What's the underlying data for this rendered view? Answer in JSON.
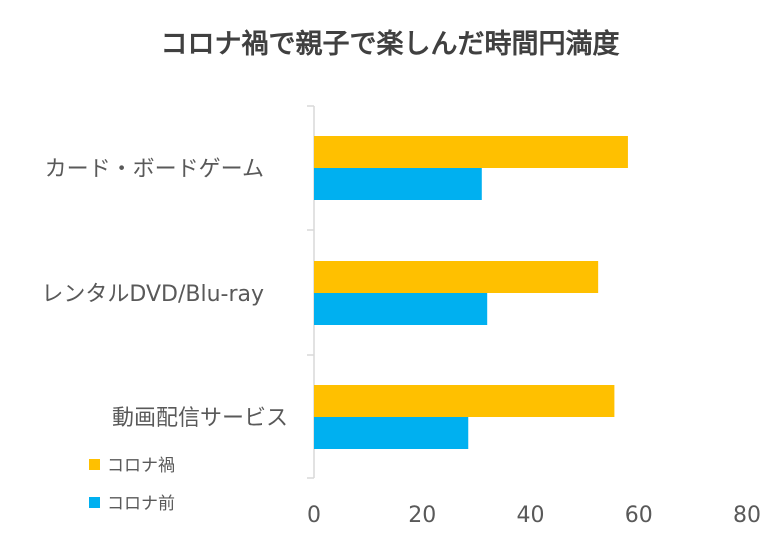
{
  "chart_data": {
    "type": "bar",
    "orientation": "horizontal",
    "title": "コロナ禍で親子で楽しんだ時間円満度",
    "categories": [
      "カード・ボードゲーム",
      "レンタルDVD/Blu-ray",
      "動画配信サービス"
    ],
    "series": [
      {
        "name": "コロナ禍",
        "color": "#FFC000",
        "values": [
          58,
          52.5,
          55.5
        ]
      },
      {
        "name": "コロナ前",
        "color": "#00B0F0",
        "values": [
          31,
          32,
          28.5
        ]
      }
    ],
    "xlim": [
      0,
      80
    ],
    "xticks": [
      "0",
      "20",
      "40",
      "60",
      "80"
    ],
    "xlabel": "",
    "ylabel": "",
    "grid": false,
    "legend": "bottom-left"
  }
}
